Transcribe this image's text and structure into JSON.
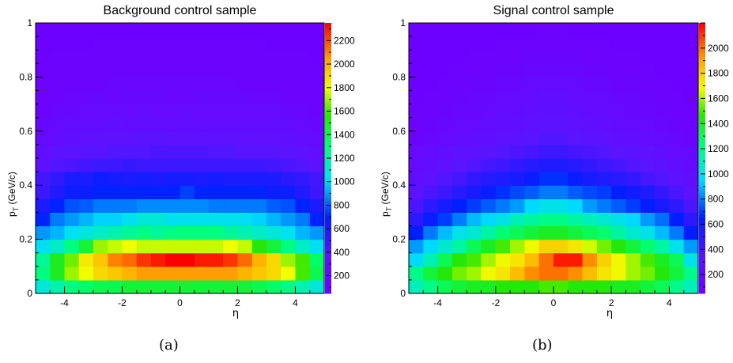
{
  "chart_data": [
    {
      "type": "heatmap",
      "title": "Background control sample",
      "xlabel": "η",
      "ylabel": "p_T (GeV/c)",
      "xlim": [
        -5,
        5
      ],
      "ylim": [
        0,
        1
      ],
      "x_ticks": [
        -4,
        -2,
        0,
        2,
        4
      ],
      "y_ticks": [
        0,
        0.2,
        0.4,
        0.6,
        0.8,
        1
      ],
      "y_tick_labels": [
        "0",
        "0.2",
        "0.4",
        "0.6",
        "0.8",
        "1"
      ],
      "x_bins": 20,
      "y_bins": 20,
      "z_range": [
        50,
        2350
      ],
      "z_ticks": [
        200,
        400,
        600,
        800,
        1000,
        1200,
        1400,
        1600,
        1800,
        2000,
        2200
      ],
      "colormap": "rainbow (violet-blue-cyan-green-yellow-red)",
      "values": [
        [
          1100,
          1200,
          1300,
          1350,
          1400,
          1400,
          1450,
          1450,
          1450,
          1450,
          1450,
          1450,
          1450,
          1450,
          1450,
          1400,
          1350,
          1300,
          1200,
          1100
        ],
        [
          1300,
          1500,
          1700,
          1800,
          1900,
          1950,
          2000,
          2050,
          2050,
          2050,
          2050,
          2050,
          2050,
          2050,
          2000,
          1950,
          1900,
          1800,
          1600,
          1400
        ],
        [
          1250,
          1500,
          1650,
          1850,
          1950,
          2100,
          2150,
          2250,
          2300,
          2350,
          2350,
          2300,
          2300,
          2250,
          2150,
          2000,
          1900,
          1700,
          1600,
          1350
        ],
        [
          1050,
          1150,
          1300,
          1450,
          1700,
          1750,
          1800,
          1750,
          1750,
          1750,
          1750,
          1750,
          1750,
          1800,
          1750,
          1550,
          1450,
          1300,
          1150,
          1050
        ],
        [
          900,
          950,
          1050,
          1100,
          1150,
          1200,
          1250,
          1300,
          1250,
          1300,
          1300,
          1300,
          1300,
          1250,
          1200,
          1150,
          1100,
          1050,
          950,
          900
        ],
        [
          700,
          850,
          900,
          950,
          1000,
          1000,
          1050,
          1100,
          1100,
          1050,
          1050,
          1050,
          1050,
          1050,
          1050,
          1000,
          950,
          900,
          850,
          700
        ],
        [
          600,
          700,
          780,
          800,
          850,
          850,
          850,
          880,
          880,
          880,
          880,
          880,
          850,
          850,
          850,
          850,
          800,
          780,
          700,
          600
        ],
        [
          480,
          580,
          650,
          650,
          700,
          700,
          700,
          700,
          700,
          700,
          750,
          700,
          700,
          700,
          700,
          700,
          650,
          650,
          580,
          480
        ],
        [
          450,
          520,
          600,
          600,
          650,
          620,
          600,
          620,
          600,
          620,
          620,
          600,
          620,
          600,
          600,
          600,
          600,
          550,
          520,
          450
        ],
        [
          330,
          400,
          420,
          450,
          480,
          480,
          500,
          480,
          480,
          480,
          480,
          480,
          480,
          480,
          480,
          480,
          450,
          420,
          400,
          330
        ],
        [
          260,
          320,
          350,
          380,
          380,
          400,
          400,
          400,
          420,
          420,
          420,
          420,
          400,
          400,
          380,
          380,
          380,
          350,
          320,
          260
        ],
        [
          200,
          250,
          280,
          300,
          320,
          320,
          320,
          350,
          350,
          320,
          320,
          320,
          320,
          320,
          320,
          300,
          300,
          280,
          250,
          200
        ],
        [
          160,
          200,
          220,
          250,
          250,
          280,
          250,
          250,
          250,
          220,
          250,
          220,
          250,
          220,
          250,
          250,
          220,
          220,
          200,
          160
        ],
        [
          120,
          160,
          180,
          200,
          200,
          200,
          200,
          220,
          200,
          200,
          220,
          200,
          200,
          200,
          200,
          200,
          200,
          180,
          160,
          120
        ],
        [
          100,
          120,
          150,
          150,
          180,
          150,
          180,
          180,
          180,
          150,
          150,
          180,
          180,
          180,
          180,
          150,
          150,
          120,
          120,
          100
        ],
        [
          80,
          100,
          120,
          120,
          120,
          150,
          150,
          150,
          150,
          150,
          150,
          150,
          150,
          150,
          120,
          120,
          120,
          100,
          100,
          80
        ],
        [
          80,
          90,
          100,
          100,
          110,
          110,
          110,
          120,
          110,
          110,
          110,
          110,
          110,
          100,
          100,
          100,
          100,
          90,
          90,
          80
        ],
        [
          70,
          80,
          80,
          90,
          90,
          90,
          90,
          90,
          90,
          90,
          90,
          90,
          90,
          90,
          90,
          90,
          90,
          80,
          80,
          70
        ],
        [
          70,
          70,
          70,
          70,
          80,
          80,
          80,
          80,
          80,
          80,
          80,
          80,
          80,
          80,
          80,
          80,
          70,
          70,
          70,
          70
        ],
        [
          70,
          70,
          70,
          70,
          70,
          70,
          70,
          70,
          70,
          70,
          70,
          70,
          70,
          70,
          70,
          70,
          70,
          70,
          70,
          70
        ]
      ]
    },
    {
      "type": "heatmap",
      "title": "Signal control sample",
      "xlabel": "η",
      "ylabel": "p_T (GeV/c)",
      "xlim": [
        -5,
        5
      ],
      "ylim": [
        0,
        1
      ],
      "x_ticks": [
        -4,
        -2,
        0,
        2,
        4
      ],
      "y_ticks": [
        0,
        0.2,
        0.4,
        0.6,
        0.8,
        1
      ],
      "y_tick_labels": [
        "0",
        "0.2",
        "0.4",
        "0.6",
        "0.8",
        "1"
      ],
      "x_bins": 20,
      "y_bins": 20,
      "z_range": [
        50,
        2200
      ],
      "z_ticks": [
        200,
        400,
        600,
        800,
        1000,
        1200,
        1400,
        1600,
        1800,
        2000
      ],
      "colormap": "rainbow (violet-blue-cyan-green-yellow-red)",
      "values": [
        [
          1100,
          1200,
          1300,
          1350,
          1400,
          1400,
          1450,
          1450,
          1450,
          1500,
          1500,
          1450,
          1450,
          1450,
          1400,
          1400,
          1350,
          1300,
          1200,
          1100
        ],
        [
          1200,
          1350,
          1450,
          1550,
          1600,
          1700,
          1750,
          1850,
          1950,
          2000,
          2000,
          1950,
          1850,
          1750,
          1700,
          1600,
          1550,
          1450,
          1350,
          1200
        ],
        [
          950,
          1100,
          1300,
          1450,
          1500,
          1600,
          1700,
          1750,
          1850,
          2000,
          2150,
          2150,
          1950,
          1800,
          1700,
          1600,
          1500,
          1400,
          1300,
          1000
        ],
        [
          850,
          950,
          1050,
          1150,
          1300,
          1400,
          1500,
          1600,
          1700,
          1800,
          1800,
          1750,
          1650,
          1550,
          1450,
          1350,
          1250,
          1150,
          1000,
          850
        ],
        [
          650,
          800,
          900,
          1000,
          1050,
          1150,
          1250,
          1300,
          1350,
          1400,
          1400,
          1350,
          1300,
          1250,
          1150,
          1050,
          1000,
          900,
          800,
          650
        ],
        [
          500,
          620,
          700,
          800,
          900,
          950,
          1000,
          1100,
          1150,
          1200,
          1200,
          1150,
          1100,
          1050,
          1000,
          950,
          850,
          780,
          650,
          500
        ],
        [
          400,
          500,
          580,
          650,
          700,
          750,
          800,
          850,
          950,
          1000,
          1000,
          950,
          850,
          800,
          750,
          700,
          650,
          580,
          500,
          400
        ],
        [
          320,
          400,
          450,
          520,
          580,
          620,
          680,
          720,
          750,
          800,
          800,
          750,
          720,
          700,
          650,
          600,
          550,
          480,
          400,
          320
        ],
        [
          250,
          320,
          380,
          420,
          480,
          520,
          550,
          580,
          620,
          680,
          680,
          620,
          580,
          550,
          520,
          480,
          420,
          380,
          320,
          250
        ],
        [
          200,
          250,
          300,
          350,
          380,
          420,
          450,
          480,
          520,
          550,
          550,
          520,
          480,
          450,
          420,
          380,
          350,
          300,
          250,
          200
        ],
        [
          180,
          200,
          250,
          300,
          320,
          350,
          380,
          400,
          420,
          450,
          450,
          420,
          400,
          380,
          350,
          320,
          300,
          250,
          200,
          180
        ],
        [
          120,
          160,
          180,
          220,
          250,
          280,
          300,
          320,
          350,
          380,
          380,
          350,
          320,
          300,
          280,
          250,
          220,
          180,
          160,
          120
        ],
        [
          100,
          120,
          150,
          180,
          200,
          220,
          250,
          280,
          300,
          320,
          320,
          300,
          280,
          250,
          220,
          200,
          180,
          150,
          120,
          100
        ],
        [
          80,
          100,
          120,
          150,
          160,
          180,
          200,
          220,
          250,
          280,
          280,
          250,
          220,
          200,
          180,
          160,
          150,
          120,
          100,
          80
        ],
        [
          70,
          80,
          100,
          120,
          150,
          150,
          180,
          200,
          220,
          250,
          250,
          220,
          200,
          180,
          150,
          150,
          120,
          100,
          80,
          70
        ],
        [
          60,
          70,
          80,
          100,
          120,
          130,
          150,
          160,
          180,
          200,
          200,
          180,
          160,
          150,
          130,
          120,
          100,
          80,
          70,
          60
        ],
        [
          60,
          60,
          70,
          80,
          100,
          110,
          120,
          130,
          150,
          160,
          160,
          150,
          130,
          120,
          110,
          100,
          80,
          70,
          60,
          60
        ],
        [
          60,
          60,
          60,
          70,
          80,
          90,
          100,
          100,
          120,
          130,
          130,
          120,
          100,
          100,
          90,
          80,
          70,
          60,
          60,
          60
        ],
        [
          60,
          60,
          60,
          60,
          70,
          70,
          80,
          80,
          90,
          100,
          100,
          90,
          80,
          80,
          70,
          70,
          60,
          60,
          60,
          60
        ],
        [
          60,
          60,
          60,
          60,
          60,
          60,
          60,
          70,
          70,
          80,
          80,
          70,
          70,
          60,
          60,
          60,
          60,
          60,
          60,
          60
        ]
      ]
    }
  ],
  "captions": [
    "(a)",
    "(b)"
  ]
}
